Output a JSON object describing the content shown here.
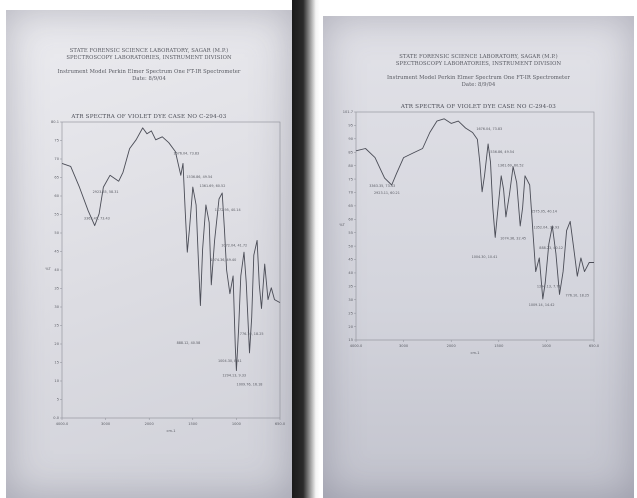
{
  "photos": [
    {
      "id": "left",
      "header": {
        "line1": "STATE FORENSIC SCIENCE LABORATORY, SAGAR (M.P.)",
        "line2": "SPECTROSCOPY LABORATORIES, INSTRUMENT DIVISION",
        "instrument": "Instrument Model Perkin Elmer Spectrum One FT-IR Spectrometer",
        "date": "Date: 8/9/04"
      },
      "chart_title": "ATR SPECTRA OF VIOLET DYE CASE NO C-294-03",
      "y_ticks": [
        "80.1",
        "75",
        "70",
        "65",
        "60",
        "55",
        "50",
        "45",
        "40",
        "35",
        "30",
        "25",
        "20",
        "15",
        "10",
        "5",
        "0.0"
      ],
      "x_ticks": [
        "4000.0",
        "3000",
        "2000",
        "1500",
        "1000",
        "650.0"
      ],
      "x_label": "cm-1",
      "y_label": "%T",
      "peaks": [
        "3363.41, 73.43",
        "2923.35, 58.31",
        "1676.04, 73.83",
        "1536.86, 49.54",
        "1361.69, 60.52",
        "1172.95, 40.14",
        "1072.04, 41.72",
        "1074.36, 49.40",
        "888.12, 40.58",
        "776.10, 18.25",
        "1004.30, 8.41",
        "1294.13, 9.33",
        "1009.76, 16.18"
      ]
    },
    {
      "id": "right",
      "header": {
        "line1": "STATE FORENSIC SCIENCE LABORATORY, SAGAR (M.P.)",
        "line2": "SPECTROSCOPY LABORATORIES, INSTRUMENT DIVISION",
        "instrument": "Instrument Model Perkin Elmer Spectrum One FT-IR Spectrometer",
        "date": "Date: 8/9/04"
      },
      "chart_title": "ATR SPECTRA OF VIOLET DYE CASE NO C-294-03",
      "y_ticks": [
        "101.7",
        "95",
        "90",
        "85",
        "80",
        "75",
        "70",
        "65",
        "60",
        "55",
        "50",
        "45",
        "40",
        "35",
        "30",
        "25",
        "20",
        "15"
      ],
      "x_ticks": [
        "4000.0",
        "3000",
        "2000",
        "1500",
        "1000",
        "650.0"
      ],
      "x_label": "cm-1",
      "y_label": "%T",
      "peaks": [
        "3363.35, 73.43",
        "2923.11, 60.21",
        "1676.04, 73.83",
        "1536.86, 49.54",
        "1361.69, 60.52",
        "1575.05, 40.14",
        "1352.04, 39.93",
        "1074.36, 32.45",
        "888.23, 40.12",
        "1004.30, 10.41",
        "1294.13, 7.71",
        "1009.14, 14.42",
        "776.10, 18.25"
      ]
    }
  ]
}
